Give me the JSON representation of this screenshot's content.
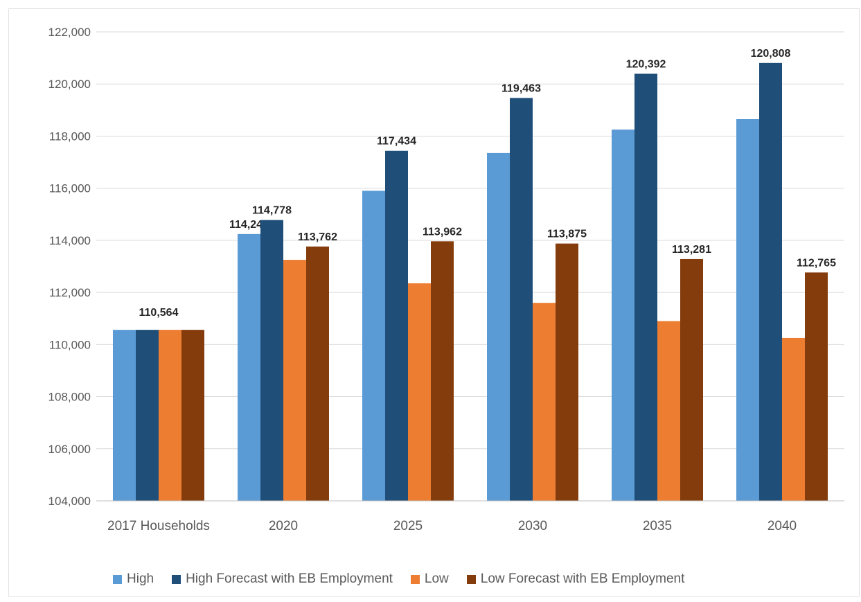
{
  "chart_data": {
    "type": "bar",
    "categories": [
      "2017 Households",
      "2020",
      "2025",
      "2030",
      "2035",
      "2040"
    ],
    "series": [
      {
        "name": "High",
        "color": "#5b9bd5",
        "values": [
          110564,
          114241,
          115900,
          117350,
          118250,
          118650
        ],
        "labels": [
          "",
          "114,241",
          "",
          "",
          "",
          ""
        ]
      },
      {
        "name": "High Forecast with EB Employment",
        "color": "#1f4e79",
        "values": [
          110564,
          114778,
          117434,
          119463,
          120392,
          120808
        ],
        "labels": [
          "",
          "114,778",
          "117,434",
          "119,463",
          "120,392",
          "120,808"
        ]
      },
      {
        "name": "Low",
        "color": "#ed7d31",
        "values": [
          110564,
          113250,
          112350,
          111600,
          110900,
          110250
        ],
        "labels": [
          "",
          "",
          "",
          "",
          "",
          ""
        ]
      },
      {
        "name": "Low Forecast with EB Employment",
        "color": "#843c0c",
        "values": [
          110564,
          113762,
          113962,
          113875,
          113281,
          112765
        ],
        "labels": [
          "",
          "113,762",
          "113,962",
          "113,875",
          "113,281",
          "112,765"
        ]
      }
    ],
    "group_labels": [
      "110,564",
      "",
      "",
      "",
      "",
      ""
    ],
    "ylim": [
      104000,
      122000
    ],
    "yticks": [
      104000,
      106000,
      108000,
      110000,
      112000,
      114000,
      116000,
      118000,
      120000,
      122000
    ],
    "ytick_labels": [
      "104,000",
      "106,000",
      "108,000",
      "110,000",
      "112,000",
      "114,000",
      "116,000",
      "118,000",
      "120,000",
      "122,000"
    ],
    "grid": true,
    "legend_position": "bottom"
  }
}
